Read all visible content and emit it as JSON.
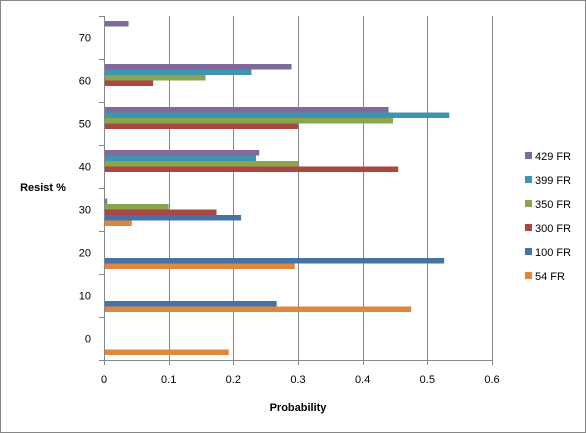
{
  "chart_data": {
    "type": "bar",
    "orientation": "horizontal",
    "title": "",
    "xlabel": "Probability",
    "ylabel": "Resist %",
    "xlim": [
      0,
      0.6
    ],
    "x_ticks": [
      "0",
      "0.1",
      "0.2",
      "0.3",
      "0.4",
      "0.5",
      "0.6"
    ],
    "categories": [
      "0",
      "10",
      "20",
      "30",
      "40",
      "50",
      "60",
      "70"
    ],
    "grid": "vertical",
    "legend_position": "right",
    "series": [
      {
        "name": "54 FR",
        "color": "#E0873B",
        "values": [
          0.193,
          0.475,
          0.295,
          0.043,
          0,
          0,
          0,
          0
        ]
      },
      {
        "name": "100 FR",
        "color": "#4572A7",
        "values": [
          0,
          0.267,
          0.526,
          0.212,
          0,
          0,
          0,
          0
        ]
      },
      {
        "name": "300 FR",
        "color": "#AA4643",
        "values": [
          0,
          0,
          0,
          0.174,
          0.455,
          0.3,
          0.076,
          0
        ]
      },
      {
        "name": "350 FR",
        "color": "#89A54E",
        "values": [
          0,
          0,
          0,
          0.1,
          0.3,
          0.447,
          0.157,
          0
        ]
      },
      {
        "name": "399 FR",
        "color": "#3D96AE",
        "values": [
          0,
          0,
          0,
          0.005,
          0.235,
          0.534,
          0.228,
          0
        ]
      },
      {
        "name": "429 FR",
        "color": "#80699B",
        "values": [
          0,
          0,
          0,
          0,
          0.24,
          0.44,
          0.29,
          0.038
        ]
      }
    ]
  }
}
